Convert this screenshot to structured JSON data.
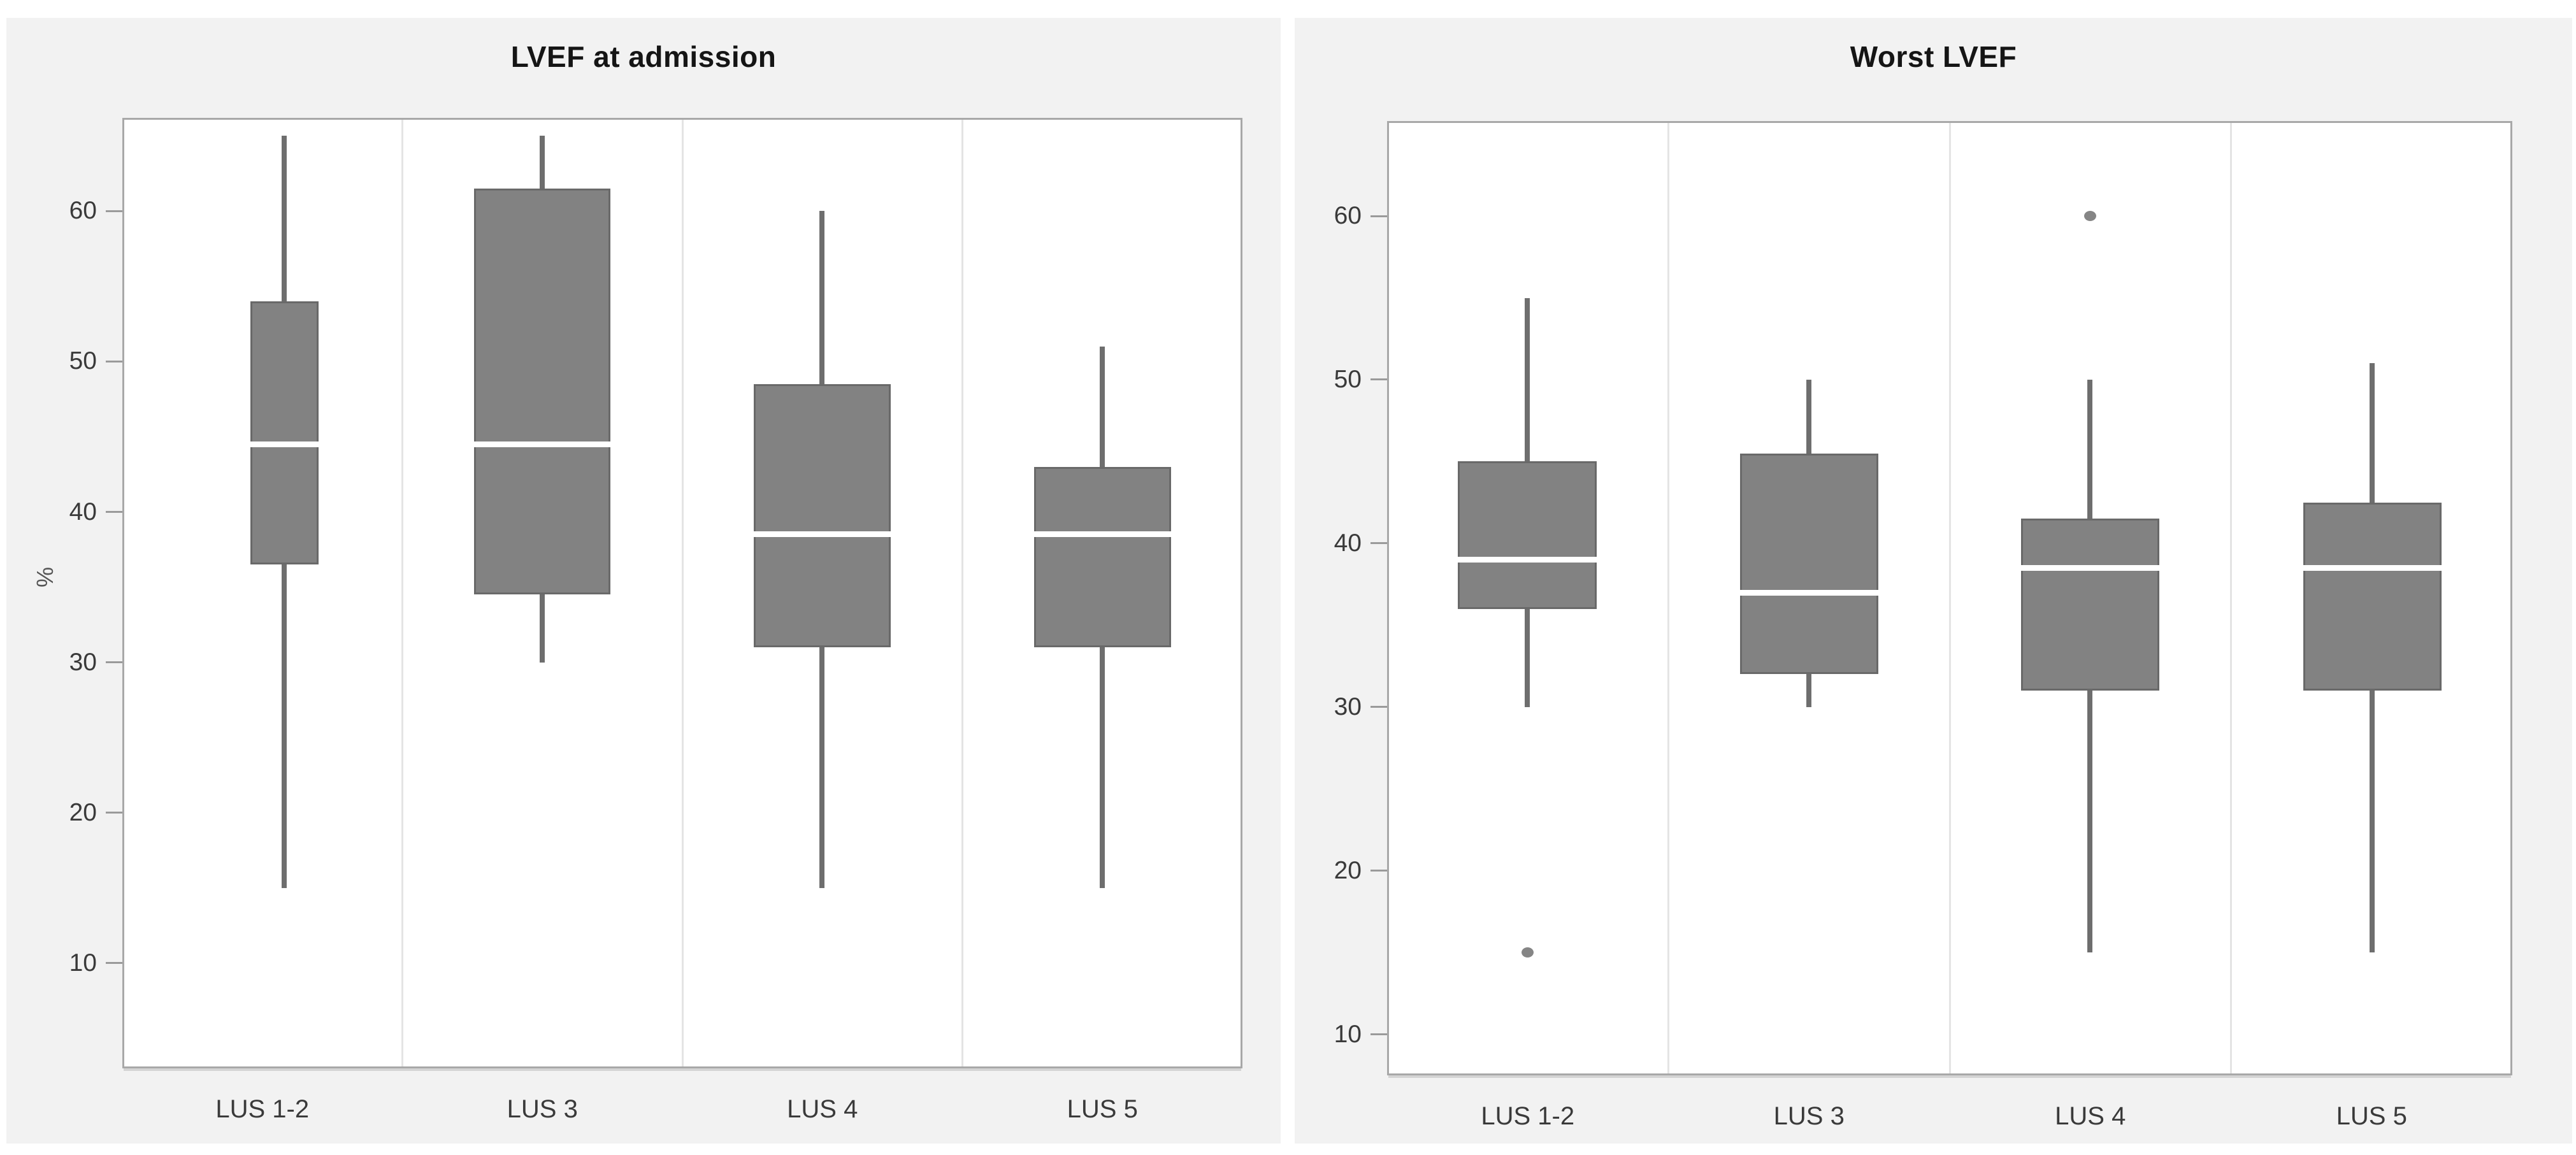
{
  "palette": {
    "panel_background": "#f2f2f2",
    "plot_background": "#ffffff",
    "plot_border": "#a8a8a8",
    "column_separator": "#e4e4e4",
    "box_fill": "#828282",
    "box_border": "#696969",
    "whisker": "#6e6e6e",
    "median_line": "#ffffff",
    "outlier": "#858585",
    "tick_text": "#3a3a3a",
    "title_text": "#151515"
  },
  "chart_data": [
    {
      "type": "box",
      "title": "LVEF at admission",
      "ylabel": "%",
      "xlabel": "",
      "categories": [
        "LUS 1-2",
        "LUS 3",
        "LUS 4",
        "LUS 5"
      ],
      "yticks": [
        10,
        20,
        30,
        40,
        50,
        60
      ],
      "ylim": [
        3,
        66.2
      ],
      "grid": "vertical-column-separators",
      "legend": "none",
      "series": [
        {
          "category": "LUS 1-2",
          "min": 15,
          "q1": 36.5,
          "median": 44.5,
          "q3": 54,
          "max": 65,
          "outliers": []
        },
        {
          "category": "LUS 3",
          "min": 30,
          "q1": 34.5,
          "median": 44.5,
          "q3": 61.5,
          "max": 65,
          "outliers": []
        },
        {
          "category": "LUS 4",
          "min": 15,
          "q1": 31,
          "median": 38.5,
          "q3": 48.5,
          "max": 60,
          "outliers": []
        },
        {
          "category": "LUS 5",
          "min": 15,
          "q1": 31,
          "median": 38.5,
          "q3": 43,
          "max": 51,
          "outliers": []
        }
      ]
    },
    {
      "type": "box",
      "title": "Worst LVEF",
      "ylabel": "",
      "xlabel": "",
      "categories": [
        "LUS 1-2",
        "LUS 3",
        "LUS 4",
        "LUS 5"
      ],
      "yticks": [
        10,
        20,
        30,
        40,
        50,
        60
      ],
      "ylim": [
        7.5,
        65.8
      ],
      "grid": "vertical-column-separators",
      "legend": "none",
      "series": [
        {
          "category": "LUS 1-2",
          "min": 30,
          "q1": 36,
          "median": 39,
          "q3": 45,
          "max": 55,
          "outliers": [
            15
          ]
        },
        {
          "category": "LUS 3",
          "min": 30,
          "q1": 32,
          "median": 37,
          "q3": 45.5,
          "max": 50,
          "outliers": []
        },
        {
          "category": "LUS 4",
          "min": 15,
          "q1": 31,
          "median": 38.5,
          "q3": 41.5,
          "max": 50,
          "outliers": [
            60
          ]
        },
        {
          "category": "LUS 5",
          "min": 15,
          "q1": 31,
          "median": 38.5,
          "q3": 42.5,
          "max": 51,
          "outliers": []
        }
      ]
    }
  ]
}
